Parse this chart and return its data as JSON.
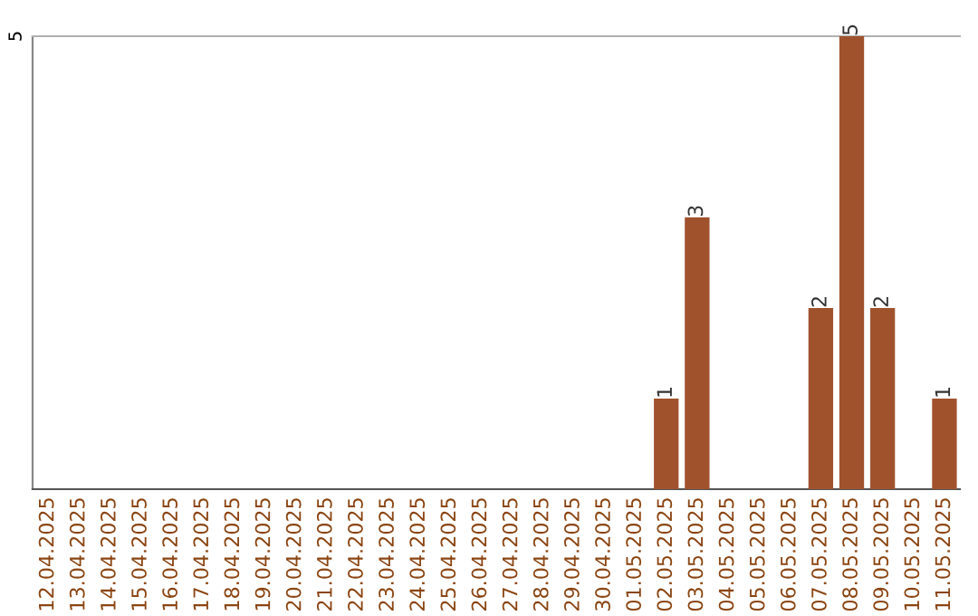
{
  "chart_data": {
    "type": "bar",
    "categories": [
      "12.04.2025",
      "13.04.2025",
      "14.04.2025",
      "15.04.2025",
      "16.04.2025",
      "17.04.2025",
      "18.04.2025",
      "19.04.2025",
      "20.04.2025",
      "21.04.2025",
      "22.04.2025",
      "23.04.2025",
      "24.04.2025",
      "25.04.2025",
      "26.04.2025",
      "27.04.2025",
      "28.04.2025",
      "29.04.2025",
      "30.04.2025",
      "01.05.2025",
      "02.05.2025",
      "03.05.2025",
      "04.05.2025",
      "05.05.2025",
      "06.05.2025",
      "07.05.2025",
      "08.05.2025",
      "09.05.2025",
      "10.05.2025",
      "11.05.2025"
    ],
    "values": [
      null,
      null,
      null,
      null,
      null,
      null,
      null,
      null,
      null,
      null,
      null,
      null,
      null,
      null,
      null,
      null,
      null,
      null,
      null,
      null,
      1,
      3,
      null,
      null,
      null,
      2,
      5,
      2,
      null,
      1
    ],
    "data_labels": true,
    "color": "#a0522d",
    "ylim": [
      0,
      5
    ],
    "yticks": [
      5
    ]
  }
}
